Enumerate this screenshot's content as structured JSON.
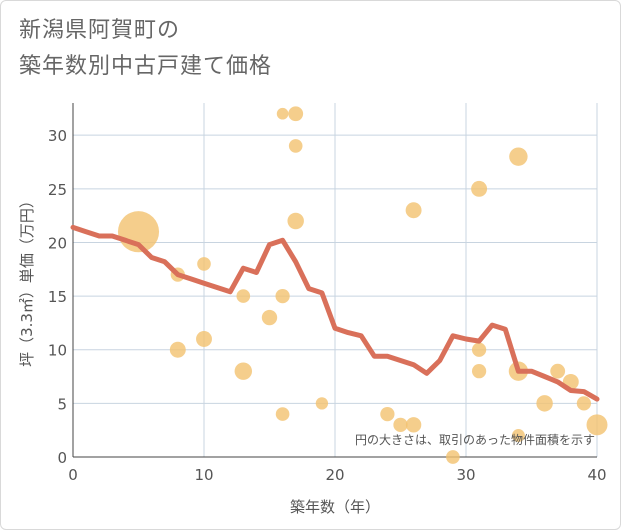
{
  "title": {
    "line1": "新潟県阿賀町の",
    "line2": "築年数別中古戸建て価格"
  },
  "chart_data": {
    "type": "scatter",
    "xlabel": "築年数（年）",
    "ylabel": "坪（3.3㎡）単価（万円）",
    "xlim": [
      0,
      40
    ],
    "ylim": [
      0,
      33
    ],
    "xticks": [
      0,
      10,
      20,
      30,
      40
    ],
    "yticks": [
      0,
      5,
      10,
      15,
      20,
      25,
      30
    ],
    "grid": true,
    "annotation": "円の大きさは、取引のあった物件面積を示す",
    "colors": {
      "bubble": "#f2c26f",
      "line": "#d9705a",
      "grid": "#c8d4e0"
    },
    "points": [
      {
        "x": 5,
        "y": 21,
        "size": 10
      },
      {
        "x": 8,
        "y": 17,
        "size": 1.2
      },
      {
        "x": 8,
        "y": 10,
        "size": 1.5
      },
      {
        "x": 10,
        "y": 18,
        "size": 1.1
      },
      {
        "x": 10,
        "y": 11,
        "size": 1.5
      },
      {
        "x": 13,
        "y": 15,
        "size": 1.1
      },
      {
        "x": 13,
        "y": 8,
        "size": 1.8
      },
      {
        "x": 15,
        "y": 13,
        "size": 1.4
      },
      {
        "x": 16,
        "y": 32,
        "size": 0.8
      },
      {
        "x": 16,
        "y": 15,
        "size": 1.2
      },
      {
        "x": 16,
        "y": 4,
        "size": 1.1
      },
      {
        "x": 17,
        "y": 32,
        "size": 1.3
      },
      {
        "x": 17,
        "y": 29,
        "size": 1.1
      },
      {
        "x": 17,
        "y": 22,
        "size": 1.6
      },
      {
        "x": 19,
        "y": 5,
        "size": 0.9
      },
      {
        "x": 24,
        "y": 4,
        "size": 1.2
      },
      {
        "x": 25,
        "y": 3,
        "size": 1.2
      },
      {
        "x": 26,
        "y": 23,
        "size": 1.5
      },
      {
        "x": 26,
        "y": 3,
        "size": 1.4
      },
      {
        "x": 29,
        "y": 0,
        "size": 1.1
      },
      {
        "x": 31,
        "y": 25,
        "size": 1.5
      },
      {
        "x": 31,
        "y": 10,
        "size": 1.2
      },
      {
        "x": 31,
        "y": 8,
        "size": 1.2
      },
      {
        "x": 34,
        "y": 28,
        "size": 2.0
      },
      {
        "x": 34,
        "y": 8,
        "size": 2.2
      },
      {
        "x": 34,
        "y": 2,
        "size": 1.0
      },
      {
        "x": 36,
        "y": 5,
        "size": 1.6
      },
      {
        "x": 37,
        "y": 8,
        "size": 1.3
      },
      {
        "x": 38,
        "y": 7,
        "size": 1.5
      },
      {
        "x": 39,
        "y": 5,
        "size": 1.2
      },
      {
        "x": 40,
        "y": 3,
        "size": 2.6
      }
    ],
    "trend": {
      "x": [
        0,
        1,
        2,
        3,
        4,
        5,
        6,
        7,
        8,
        9,
        10,
        11,
        12,
        13,
        14,
        15,
        16,
        17,
        18,
        19,
        20,
        21,
        22,
        23,
        24,
        25,
        26,
        27,
        28,
        29,
        30,
        31,
        32,
        33,
        34,
        35,
        36,
        37,
        38,
        39,
        40
      ],
      "y": [
        21.4,
        21.0,
        20.6,
        20.6,
        20.2,
        19.8,
        18.6,
        18.2,
        17.0,
        16.6,
        16.2,
        15.8,
        15.4,
        17.6,
        17.2,
        19.8,
        20.2,
        18.2,
        15.7,
        15.3,
        12.0,
        11.6,
        11.3,
        9.4,
        9.4,
        9.0,
        8.6,
        7.8,
        9.0,
        11.3,
        11.0,
        10.8,
        12.3,
        11.9,
        8.0,
        8.0,
        7.5,
        7.0,
        6.2,
        6.1,
        5.4
      ]
    }
  }
}
